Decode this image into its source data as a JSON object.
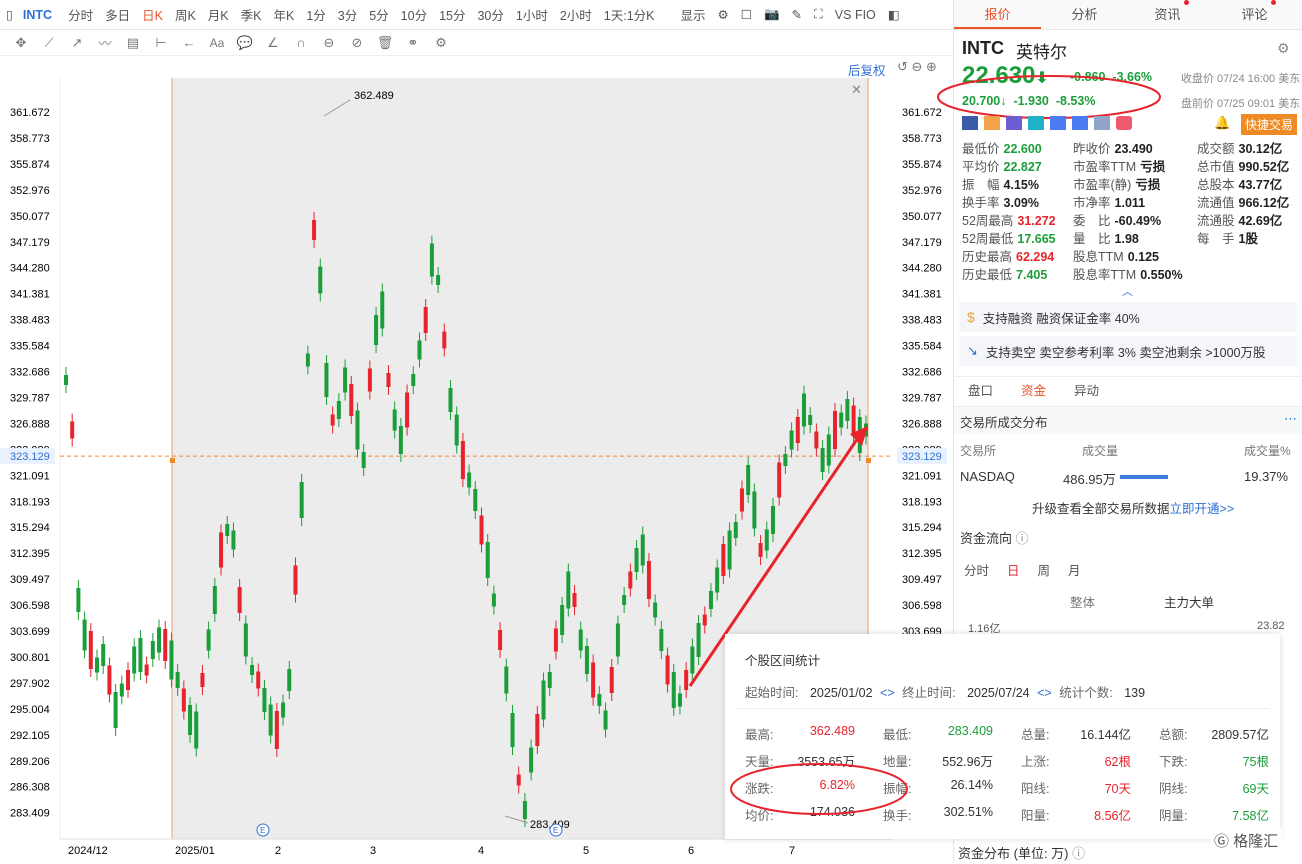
{
  "toolbar": {
    "symbol": "INTC",
    "periods": [
      "分时",
      "多日",
      "日K",
      "周K",
      "月K",
      "季K",
      "年K",
      "1分",
      "3分",
      "5分",
      "10分",
      "15分",
      "30分",
      "1小时",
      "2小时",
      "1天:1分K"
    ],
    "active_period": "日K",
    "display": "显示",
    "indicator": "VS FIO"
  },
  "chart": {
    "restore_label": "后复权",
    "y_ticks": [
      "361.672",
      "358.773",
      "355.874",
      "352.976",
      "350.077",
      "347.179",
      "344.280",
      "341.381",
      "338.483",
      "335.584",
      "332.686",
      "329.787",
      "326.888",
      "323.989",
      "321.091",
      "318.193",
      "315.294",
      "312.395",
      "309.497",
      "306.598",
      "303.699",
      "300.801",
      "297.902",
      "295.004",
      "292.105",
      "289.206",
      "286.308",
      "283.409"
    ],
    "right_ticks": [
      "361.672",
      "358.773",
      "355.874",
      "352.976",
      "350.077",
      "347.179",
      "344.280",
      "341.381",
      "338.483",
      "335.584",
      "332.686",
      "329.787",
      "326.888",
      "323.989",
      "321.091",
      "318.193",
      "315.294",
      "312.395",
      "309.497",
      "306.598",
      "303.699"
    ],
    "current_price": "323.129",
    "x_ticks": [
      "2024/12",
      "2025/01",
      "2",
      "3",
      "4",
      "5",
      "6",
      "7"
    ],
    "high_label": "362.489",
    "low_label": "283.409",
    "event_label": "E"
  },
  "quote": {
    "tabs": [
      "报价",
      "分析",
      "资讯",
      "评论"
    ],
    "symbol": "INTC",
    "name": "英特尔",
    "price": "22.630",
    "change": "-0.860",
    "change_pct": "-3.66%",
    "close_time": "收盘价 07/24 16:00 美东",
    "pre_price": "20.700",
    "pre_change": "-1.930",
    "pre_change_pct": "-8.53%",
    "pre_time": "盘前价 07/25 09:01 美东",
    "trade_button": "快捷交易",
    "stats": [
      [
        "最低价",
        "22.600",
        "昨收价",
        "23.490",
        "成交额",
        "30.12亿"
      ],
      [
        "平均价",
        "22.827",
        "市盈率TTM",
        "亏损",
        "总市值",
        "990.52亿"
      ],
      [
        "振　幅",
        "4.15%",
        "市盈率(静)",
        "亏损",
        "总股本",
        "43.77亿"
      ],
      [
        "换手率",
        "3.09%",
        "市净率",
        "1.011",
        "流通值",
        "966.12亿"
      ],
      [
        "52周最高",
        "31.272",
        "委　比",
        "-60.49%",
        "流通股",
        "42.69亿"
      ],
      [
        "52周最低",
        "17.665",
        "量　比",
        "1.98",
        "每　手",
        "1股"
      ],
      [
        "历史最高",
        "62.294",
        "股息TTM",
        "0.125",
        "",
        ""
      ],
      [
        "历史最低",
        "7.405",
        "股息率TTM",
        "0.550%",
        "",
        ""
      ]
    ],
    "margin_info": "支持融资 融资保证金率 40%",
    "short_info": "支持卖空 卖空参考利率 3% 卖空池剩余 >1000万股",
    "section_tabs": [
      "盘口",
      "资金",
      "异动"
    ],
    "exchange_title": "交易所成交分布",
    "exchange_headers": [
      "交易所",
      "成交量",
      "成交量%"
    ],
    "exchange_row": [
      "NASDAQ",
      "486.95万",
      "19.37%"
    ],
    "exchange_bar": 0.4,
    "upgrade_text": "升级查看全部交易所数据",
    "upgrade_link": "立即开通>>",
    "flow_title": "资金流向",
    "flow_tabs": [
      "分时",
      "日",
      "周",
      "月"
    ],
    "flow_sub": [
      "整体",
      "主力大单"
    ],
    "flow_left": "1.16亿",
    "flow_right": "23.82",
    "dist_title": "资金分布 (单位: 万)"
  },
  "stats": {
    "title": "个股区间统计",
    "start_label": "起始时间:",
    "start": "2025/01/02",
    "end_label": "终止时间:",
    "end": "2025/07/24",
    "count_label": "统计个数:",
    "count": "139",
    "rows": [
      [
        "最高:",
        "362.489",
        "最低:",
        "283.409",
        "总量:",
        "16.144亿",
        "总额:",
        "2809.57亿"
      ],
      [
        "天量:",
        "3553.65万",
        "地量:",
        "552.96万",
        "上涨:",
        "62根",
        "下跌:",
        "75根"
      ],
      [
        "涨跌:",
        "6.82%",
        "振幅:",
        "26.14%",
        "阳线:",
        "70天",
        "阴线:",
        "69天"
      ],
      [
        "均价:",
        "174.036",
        "换手:",
        "302.51%",
        "阳量:",
        "8.56亿",
        "阴量:",
        "7.58亿"
      ]
    ]
  },
  "watermark": "格隆汇"
}
